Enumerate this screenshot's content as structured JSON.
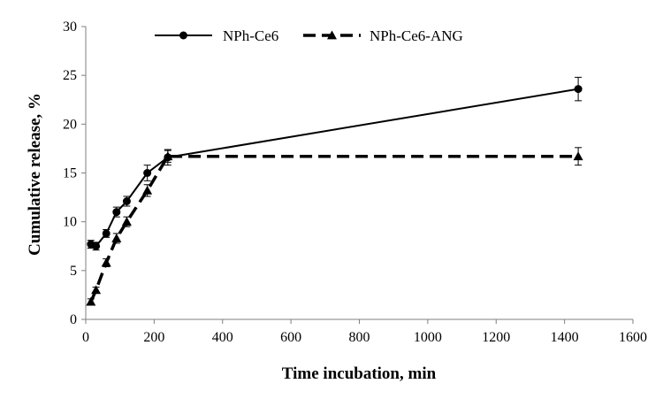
{
  "chart_data": {
    "type": "line",
    "xlabel": "Time incubation, min",
    "ylabel": "Cumulative release, %",
    "xlim": [
      0,
      1600
    ],
    "ylim": [
      0,
      30
    ],
    "xticks": [
      0,
      200,
      400,
      600,
      800,
      1000,
      1200,
      1400,
      1600
    ],
    "yticks": [
      0,
      5,
      10,
      15,
      20,
      25,
      30
    ],
    "grid": false,
    "legend_position": "top",
    "series": [
      {
        "name": "NPh-Ce6",
        "line_style": "solid",
        "marker": "circle",
        "color": "#000000",
        "x": [
          15,
          30,
          60,
          90,
          120,
          180,
          240,
          1440
        ],
        "y": [
          7.7,
          7.5,
          8.8,
          11.0,
          12.1,
          15.0,
          16.6,
          23.6
        ],
        "error": [
          0.4,
          0.4,
          0.4,
          0.5,
          0.5,
          0.8,
          0.8,
          1.2
        ]
      },
      {
        "name": "NPh-Ce6-ANG",
        "line_style": "dashed",
        "marker": "triangle",
        "color": "#000000",
        "x": [
          15,
          30,
          60,
          90,
          120,
          180,
          240,
          1440
        ],
        "y": [
          1.8,
          3.0,
          5.8,
          8.3,
          10.0,
          13.2,
          16.7,
          16.7
        ],
        "error": [
          0.3,
          0.3,
          0.4,
          0.5,
          0.5,
          0.6,
          0.6,
          0.9
        ]
      }
    ]
  }
}
